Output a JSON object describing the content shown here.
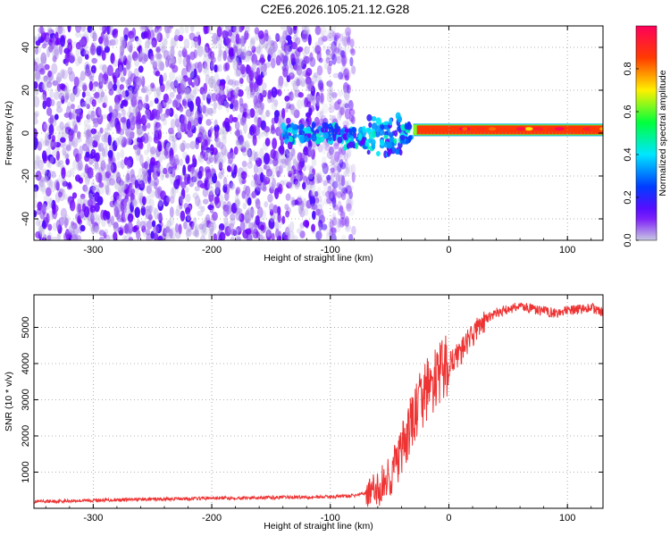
{
  "title": "C2E6.2026.105.21.12.G28",
  "chart_data": [
    {
      "type": "heatmap",
      "xlabel": "Height of straight line (km)",
      "ylabel": "Frequency (Hz)",
      "xlim": [
        -350,
        130
      ],
      "ylim": [
        -50,
        50
      ],
      "xticks": [
        -300,
        -200,
        -100,
        0,
        100
      ],
      "yticks": [
        -40,
        -20,
        0,
        20,
        40
      ],
      "colorbar": {
        "label": "Normalized spectral amplitude",
        "range": [
          0,
          1
        ],
        "ticks": [
          0.0,
          0.2,
          0.4,
          0.6,
          0.8
        ]
      },
      "regions": [
        {
          "x_range": [
            -350,
            -80
          ],
          "freq_range": [
            -50,
            50
          ],
          "amplitude": "low (0.0-0.15)"
        },
        {
          "x_range": [
            -140,
            -30
          ],
          "freq_range": [
            -15,
            5
          ],
          "amplitude": "0.2-0.5"
        },
        {
          "x_range": [
            -30,
            130
          ],
          "freq_range": [
            0,
            3
          ],
          "amplitude": "0.8-1.0"
        }
      ],
      "grid": true
    },
    {
      "type": "line",
      "xlabel": "Height of straight line (km)",
      "ylabel": "SNR (10 * v/v)",
      "xlim": [
        -350,
        130
      ],
      "ylim": [
        0,
        5900
      ],
      "xticks": [
        -300,
        -200,
        -100,
        0,
        100
      ],
      "yticks": [
        1000,
        2000,
        3000,
        4000,
        5000
      ],
      "color": "#ee3333",
      "grid": true,
      "series": [
        {
          "x": [
            -350,
            -300,
            -250,
            -200,
            -150,
            -100,
            -80,
            -60,
            -50,
            -40,
            -30,
            -20,
            -10,
            0,
            10,
            20,
            30,
            40,
            50,
            60,
            70,
            80,
            90,
            100,
            110,
            120,
            130
          ],
          "y": [
            180,
            220,
            250,
            280,
            300,
            320,
            350,
            500,
            900,
            1500,
            2500,
            3200,
            3600,
            4000,
            4300,
            4800,
            5200,
            5400,
            5500,
            5600,
            5500,
            5450,
            5400,
            5450,
            5500,
            5550,
            5400
          ]
        }
      ]
    }
  ]
}
